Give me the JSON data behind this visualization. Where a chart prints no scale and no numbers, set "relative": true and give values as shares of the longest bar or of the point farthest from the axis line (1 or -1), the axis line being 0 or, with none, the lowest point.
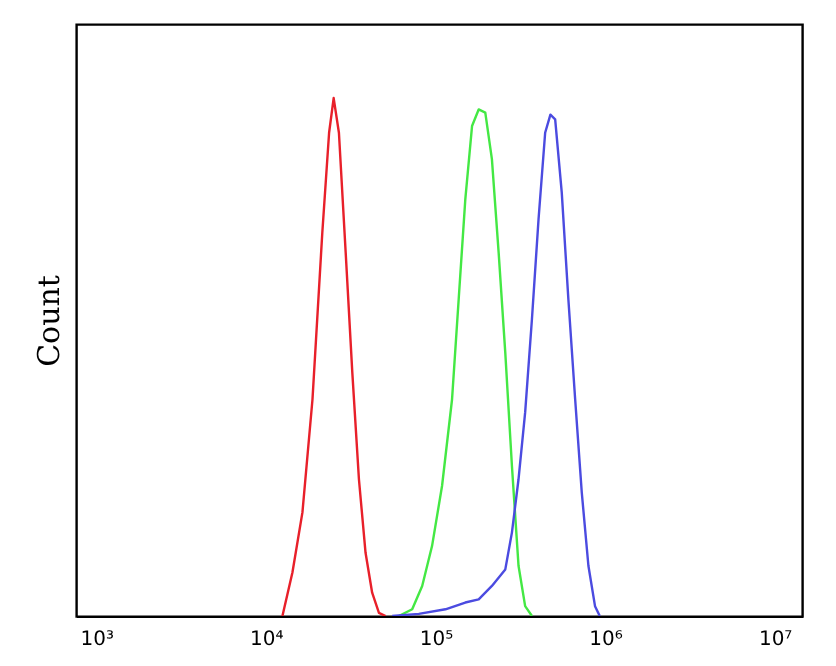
{
  "chart_data": {
    "type": "line",
    "ylabel": "Count",
    "relative": true,
    "log": "x",
    "grid": false,
    "marker": "none",
    "line_style": "solid",
    "xlim": [
      760,
      14500000
    ],
    "xticks": [
      {
        "value": 1000,
        "label": "10³"
      },
      {
        "value": 10000,
        "label": "10⁴"
      },
      {
        "value": 100000,
        "label": "10⁵"
      },
      {
        "value": 1000000,
        "label": "10⁶"
      },
      {
        "value": 10000000,
        "label": "10⁷"
      }
    ],
    "series": [
      {
        "color": "#e8202a",
        "x": [
          12530,
          14350,
          16440,
          18840,
          21530,
          23610,
          25120,
          26980,
          29580,
          32360,
          35400,
          38730,
          42360,
          46450,
          50820
        ],
        "values": [
          0,
          0.084,
          0.2,
          0.418,
          0.74,
          0.933,
          1,
          0.933,
          0.701,
          0.47,
          0.264,
          0.122,
          0.045,
          0.006,
          0
        ]
      },
      {
        "color": "#44e844",
        "x": [
          60810,
          72950,
          83560,
          95500,
          109400,
          125300,
          137100,
          150000,
          164400,
          179900,
          196800,
          215300,
          236000,
          258200,
          282500,
          309000,
          338100,
          370700
        ],
        "values": [
          0,
          0.013,
          0.058,
          0.135,
          0.251,
          0.418,
          0.611,
          0.804,
          0.946,
          0.978,
          0.972,
          0.882,
          0.701,
          0.508,
          0.29,
          0.097,
          0.019,
          0
        ]
      },
      {
        "color": "#4b4be0",
        "x": [
          55590,
          79800,
          114600,
          150000,
          179900,
          215300,
          258200,
          282500,
          309000,
          338100,
          370700,
          405500,
          443600,
          476400,
          508200,
          555900,
          608100,
          666800,
          729500,
          798000,
          873000,
          931100
        ],
        "values": [
          0,
          0.004,
          0.013,
          0.026,
          0.032,
          0.058,
          0.09,
          0.161,
          0.264,
          0.393,
          0.573,
          0.766,
          0.933,
          0.968,
          0.959,
          0.817,
          0.611,
          0.418,
          0.238,
          0.097,
          0.019,
          0
        ]
      }
    ]
  }
}
